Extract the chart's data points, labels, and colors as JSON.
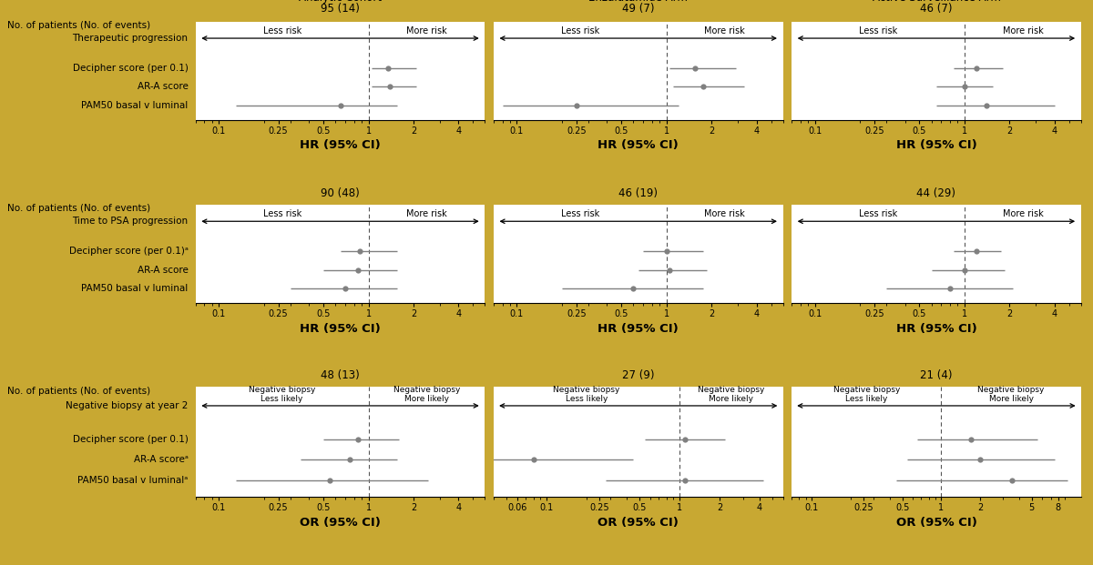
{
  "border_color": "#C8A832",
  "sections": [
    {
      "no_patients_label": "No. of patients (No. of events)",
      "outcome_label": "Therapeutic progression",
      "ylabel": "HR (95% CI)",
      "panels": [
        {
          "arm_title": "Analytic Cohort",
          "arm_n": "95 (14)",
          "xticks": [
            0.1,
            0.25,
            0.5,
            1.0,
            2.0,
            4.0
          ],
          "xlim": [
            0.07,
            6.0
          ],
          "direction_labels": [
            "Less risk",
            "More risk"
          ],
          "items": [
            {
              "label": "Decipher score (per 0.1)",
              "est": 1.35,
              "lo": 1.05,
              "hi": 2.1
            },
            {
              "label": "AR-A score",
              "est": 1.38,
              "lo": 1.05,
              "hi": 2.1
            },
            {
              "label": "PAM50 basal v luminal",
              "est": 0.65,
              "lo": 0.13,
              "hi": 1.55
            }
          ]
        },
        {
          "arm_title": "Enzalutamide Arm",
          "arm_n": "49 (7)",
          "xticks": [
            0.1,
            0.25,
            0.5,
            1.0,
            2.0,
            4.0
          ],
          "xlim": [
            0.07,
            6.0
          ],
          "direction_labels": [
            "Less risk",
            "More risk"
          ],
          "items": [
            {
              "label": "Decipher score (per 0.1)",
              "est": 1.55,
              "lo": 1.05,
              "hi": 2.9
            },
            {
              "label": "AR-A score",
              "est": 1.75,
              "lo": 1.1,
              "hi": 3.3
            },
            {
              "label": "PAM50 basal v luminal",
              "est": 0.25,
              "lo": 0.08,
              "hi": 1.2
            }
          ]
        },
        {
          "arm_title": "Active Surveillance Arm",
          "arm_n": "46 (7)",
          "xticks": [
            0.1,
            0.25,
            0.5,
            1.0,
            2.0,
            4.0
          ],
          "xlim": [
            0.07,
            6.0
          ],
          "direction_labels": [
            "Less risk",
            "More risk"
          ],
          "items": [
            {
              "label": "Decipher score (per 0.1)",
              "est": 1.2,
              "lo": 0.85,
              "hi": 1.8
            },
            {
              "label": "AR-A score",
              "est": 1.0,
              "lo": 0.65,
              "hi": 1.55
            },
            {
              "label": "PAM50 basal v luminal",
              "est": 1.4,
              "lo": 0.65,
              "hi": 4.0
            }
          ]
        }
      ]
    },
    {
      "no_patients_label": "No. of patients (No. of events)",
      "outcome_label": "Time to PSA progression",
      "ylabel": "HR (95% CI)",
      "panels": [
        {
          "arm_title": "Analytic Cohort",
          "arm_n": "90 (48)",
          "xticks": [
            0.1,
            0.25,
            0.5,
            1.0,
            2.0,
            4.0
          ],
          "xlim": [
            0.07,
            6.0
          ],
          "direction_labels": [
            "Less risk",
            "More risk"
          ],
          "items": [
            {
              "label": "Decipher score (per 0.1)ᵃ",
              "est": 0.88,
              "lo": 0.65,
              "hi": 1.55
            },
            {
              "label": "AR-A score",
              "est": 0.85,
              "lo": 0.5,
              "hi": 1.55
            },
            {
              "label": "PAM50 basal v luminal",
              "est": 0.7,
              "lo": 0.3,
              "hi": 1.55
            }
          ]
        },
        {
          "arm_title": "Enzalutamide Arm",
          "arm_n": "46 (19)",
          "xticks": [
            0.1,
            0.25,
            0.5,
            1.0,
            2.0,
            4.0
          ],
          "xlim": [
            0.07,
            6.0
          ],
          "direction_labels": [
            "Less risk",
            "More risk"
          ],
          "items": [
            {
              "label": "Decipher score (per 0.1)ᵃ",
              "est": 1.0,
              "lo": 0.7,
              "hi": 1.75
            },
            {
              "label": "AR-A score",
              "est": 1.05,
              "lo": 0.65,
              "hi": 1.85
            },
            {
              "label": "PAM50 basal v luminal",
              "est": 0.6,
              "lo": 0.2,
              "hi": 1.75
            }
          ]
        },
        {
          "arm_title": "Active Surveillance Arm",
          "arm_n": "44 (29)",
          "xticks": [
            0.1,
            0.25,
            0.5,
            1.0,
            2.0,
            4.0
          ],
          "xlim": [
            0.07,
            6.0
          ],
          "direction_labels": [
            "Less risk",
            "More risk"
          ],
          "items": [
            {
              "label": "Decipher score (per 0.1)ᵃ",
              "est": 1.2,
              "lo": 0.85,
              "hi": 1.75
            },
            {
              "label": "AR-A score",
              "est": 1.0,
              "lo": 0.6,
              "hi": 1.85
            },
            {
              "label": "PAM50 basal v luminal",
              "est": 0.8,
              "lo": 0.3,
              "hi": 2.1
            }
          ]
        }
      ]
    },
    {
      "no_patients_label": "No. of patients (No. of events)",
      "outcome_label": "Negative biopsy at year 2",
      "ylabel": "OR (95% CI)",
      "panels": [
        {
          "arm_title": "Analytic Cohort",
          "arm_n": "48 (13)",
          "xticks": [
            0.1,
            0.25,
            0.5,
            1.0,
            2.0,
            4.0
          ],
          "xlim": [
            0.07,
            6.0
          ],
          "direction_labels": [
            "Negative biopsy",
            "Negative biopsy",
            "Less likely",
            "More likely"
          ],
          "items": [
            {
              "label": "Decipher score (per 0.1)",
              "est": 0.85,
              "lo": 0.5,
              "hi": 1.6
            },
            {
              "label": "AR-A scoreᵃ",
              "est": 0.75,
              "lo": 0.35,
              "hi": 1.55
            },
            {
              "label": "PAM50 basal v luminalᵃ",
              "est": 0.55,
              "lo": 0.13,
              "hi": 2.5
            }
          ]
        },
        {
          "arm_title": "Enzalutamide Arm",
          "arm_n": "27 (9)",
          "xticks": [
            0.06,
            0.1,
            0.25,
            0.5,
            1.0,
            2.0,
            4.0
          ],
          "xlim": [
            0.04,
            6.0
          ],
          "direction_labels": [
            "Negative biopsy",
            "Negative biopsy",
            "Less likely",
            "More likely"
          ],
          "items": [
            {
              "label": "Decipher score (per 0.1)",
              "est": 1.1,
              "lo": 0.55,
              "hi": 2.2
            },
            {
              "label": "AR-A scoreᵃ",
              "est": 0.08,
              "lo": 0.03,
              "hi": 0.45
            },
            {
              "label": "PAM50 basal v luminalᵃ",
              "est": 1.1,
              "lo": 0.28,
              "hi": 4.3
            }
          ]
        },
        {
          "arm_title": "Active Surveillance Arm",
          "arm_n": "21 (4)",
          "xticks": [
            0.1,
            0.25,
            0.5,
            1.0,
            2.0,
            5.0,
            8.0
          ],
          "xlim": [
            0.07,
            12.0
          ],
          "direction_labels": [
            "Negative biopsy",
            "Negative biopsy",
            "Less likely",
            "More likely"
          ],
          "items": [
            {
              "label": "Decipher score (per 0.1)",
              "est": 1.7,
              "lo": 0.65,
              "hi": 5.5
            },
            {
              "label": "AR-A scoreᵃ",
              "est": 2.0,
              "lo": 0.55,
              "hi": 7.5
            },
            {
              "label": "PAM50 basal v luminalᵃ",
              "est": 3.5,
              "lo": 0.45,
              "hi": 9.5
            }
          ]
        }
      ]
    }
  ],
  "dot_color": "#808080",
  "line_color": "#808080",
  "ref_line_color": "#555555",
  "label_fontsize": 7.5,
  "tick_fontsize": 7.0,
  "xlabel_fontsize": 9.5,
  "title_fontsize": 8.5,
  "n_fontsize": 8.5,
  "arrow_label_fontsize": 7.0
}
